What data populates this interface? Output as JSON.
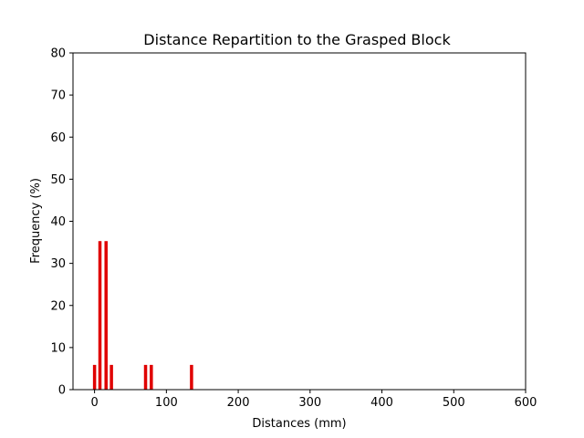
{
  "chart_data": {
    "type": "bar",
    "title": "Distance Repartition to the Grasped Block",
    "xlabel": "Distances (mm)",
    "ylabel": "Frequency (%)",
    "xlim": [
      -30,
      600
    ],
    "ylim": [
      0,
      80
    ],
    "xticks": [
      0,
      100,
      200,
      300,
      400,
      500,
      600
    ],
    "yticks": [
      0,
      10,
      20,
      30,
      40,
      50,
      60,
      70,
      80
    ],
    "grid": false,
    "bar_color": "#e00000",
    "bar_width": 3.5,
    "x": [
      0,
      7.5,
      16,
      23.5,
      71,
      79,
      135
    ],
    "values": [
      5.88,
      35.29,
      35.29,
      5.88,
      5.88,
      5.88,
      5.88
    ]
  }
}
